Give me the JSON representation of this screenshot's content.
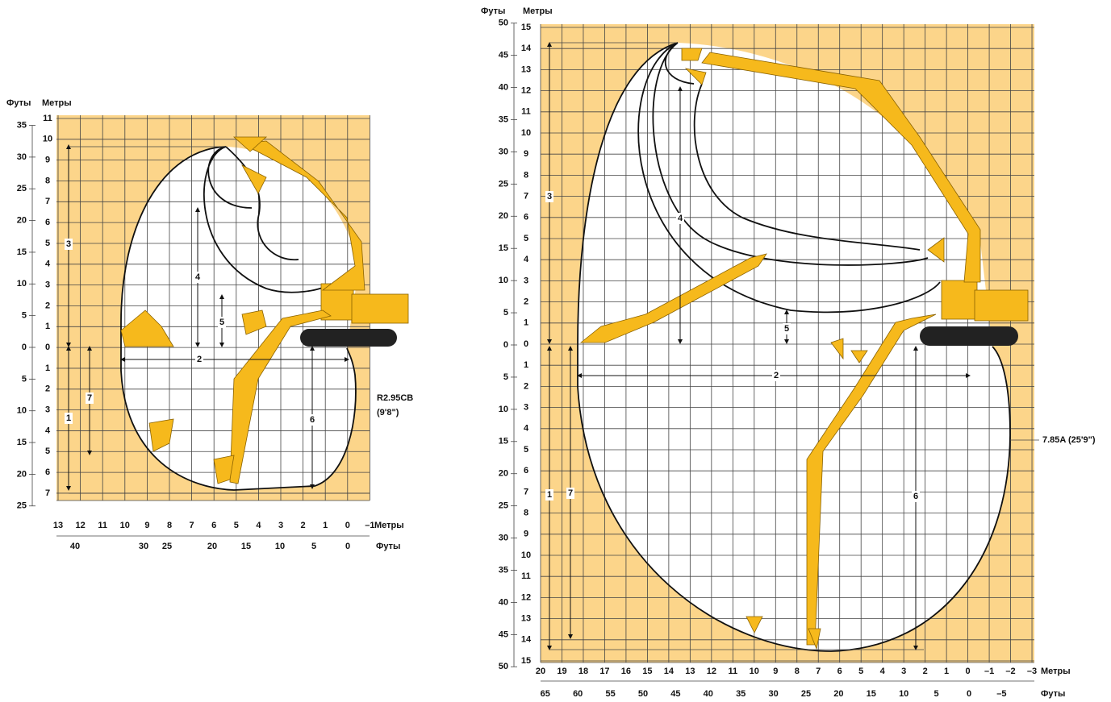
{
  "left": {
    "ft_header": "Футы",
    "m_header": "Метры",
    "y_m": [
      "11",
      "10",
      "9",
      "8",
      "7",
      "6",
      "5",
      "4",
      "3",
      "2",
      "1",
      "0",
      "1",
      "2",
      "3",
      "4",
      "5",
      "6",
      "7"
    ],
    "y_ft": [
      "35",
      "30",
      "25",
      "20",
      "15",
      "10",
      "5",
      "0",
      "5",
      "10",
      "15",
      "20",
      "25"
    ],
    "x_m": [
      "13",
      "12",
      "11",
      "10",
      "9",
      "8",
      "7",
      "6",
      "5",
      "4",
      "3",
      "2",
      "1",
      "0",
      "–1"
    ],
    "x_ft": [
      "40",
      "30",
      "25",
      "20",
      "15",
      "10",
      "5",
      "0"
    ],
    "x_m_unit": "Метры",
    "x_ft_unit": "Футы",
    "dims": [
      "3",
      "4",
      "5",
      "2",
      "1",
      "7",
      "6"
    ],
    "boom": "R2.95CB",
    "boom_len": "(9'8\")"
  },
  "right": {
    "ft_header": "Футы",
    "m_header": "Метры",
    "y_m": [
      "15",
      "14",
      "13",
      "12",
      "11",
      "10",
      "9",
      "8",
      "7",
      "6",
      "5",
      "4",
      "3",
      "2",
      "1",
      "0",
      "1",
      "2",
      "3",
      "4",
      "5",
      "6",
      "7",
      "8",
      "9",
      "10",
      "11",
      "12",
      "13",
      "14",
      "15"
    ],
    "y_ft": [
      "50",
      "45",
      "40",
      "35",
      "30",
      "25",
      "20",
      "15",
      "10",
      "5",
      "0",
      "5",
      "10",
      "15",
      "20",
      "25",
      "30",
      "35",
      "40",
      "45",
      "50"
    ],
    "x_m": [
      "20",
      "19",
      "18",
      "17",
      "16",
      "15",
      "14",
      "13",
      "12",
      "11",
      "10",
      "9",
      "8",
      "7",
      "6",
      "5",
      "4",
      "3",
      "2",
      "1",
      "0",
      "–1",
      "–2",
      "–3"
    ],
    "x_ft": [
      "65",
      "60",
      "55",
      "50",
      "45",
      "40",
      "35",
      "30",
      "25",
      "20",
      "15",
      "10",
      "5",
      "0",
      "–5"
    ],
    "x_m_unit": "Метры",
    "x_ft_unit": "Футы",
    "dims": [
      "3",
      "4",
      "5",
      "2",
      "1",
      "7",
      "6"
    ],
    "boom": "7.85A (25'9\")"
  }
}
